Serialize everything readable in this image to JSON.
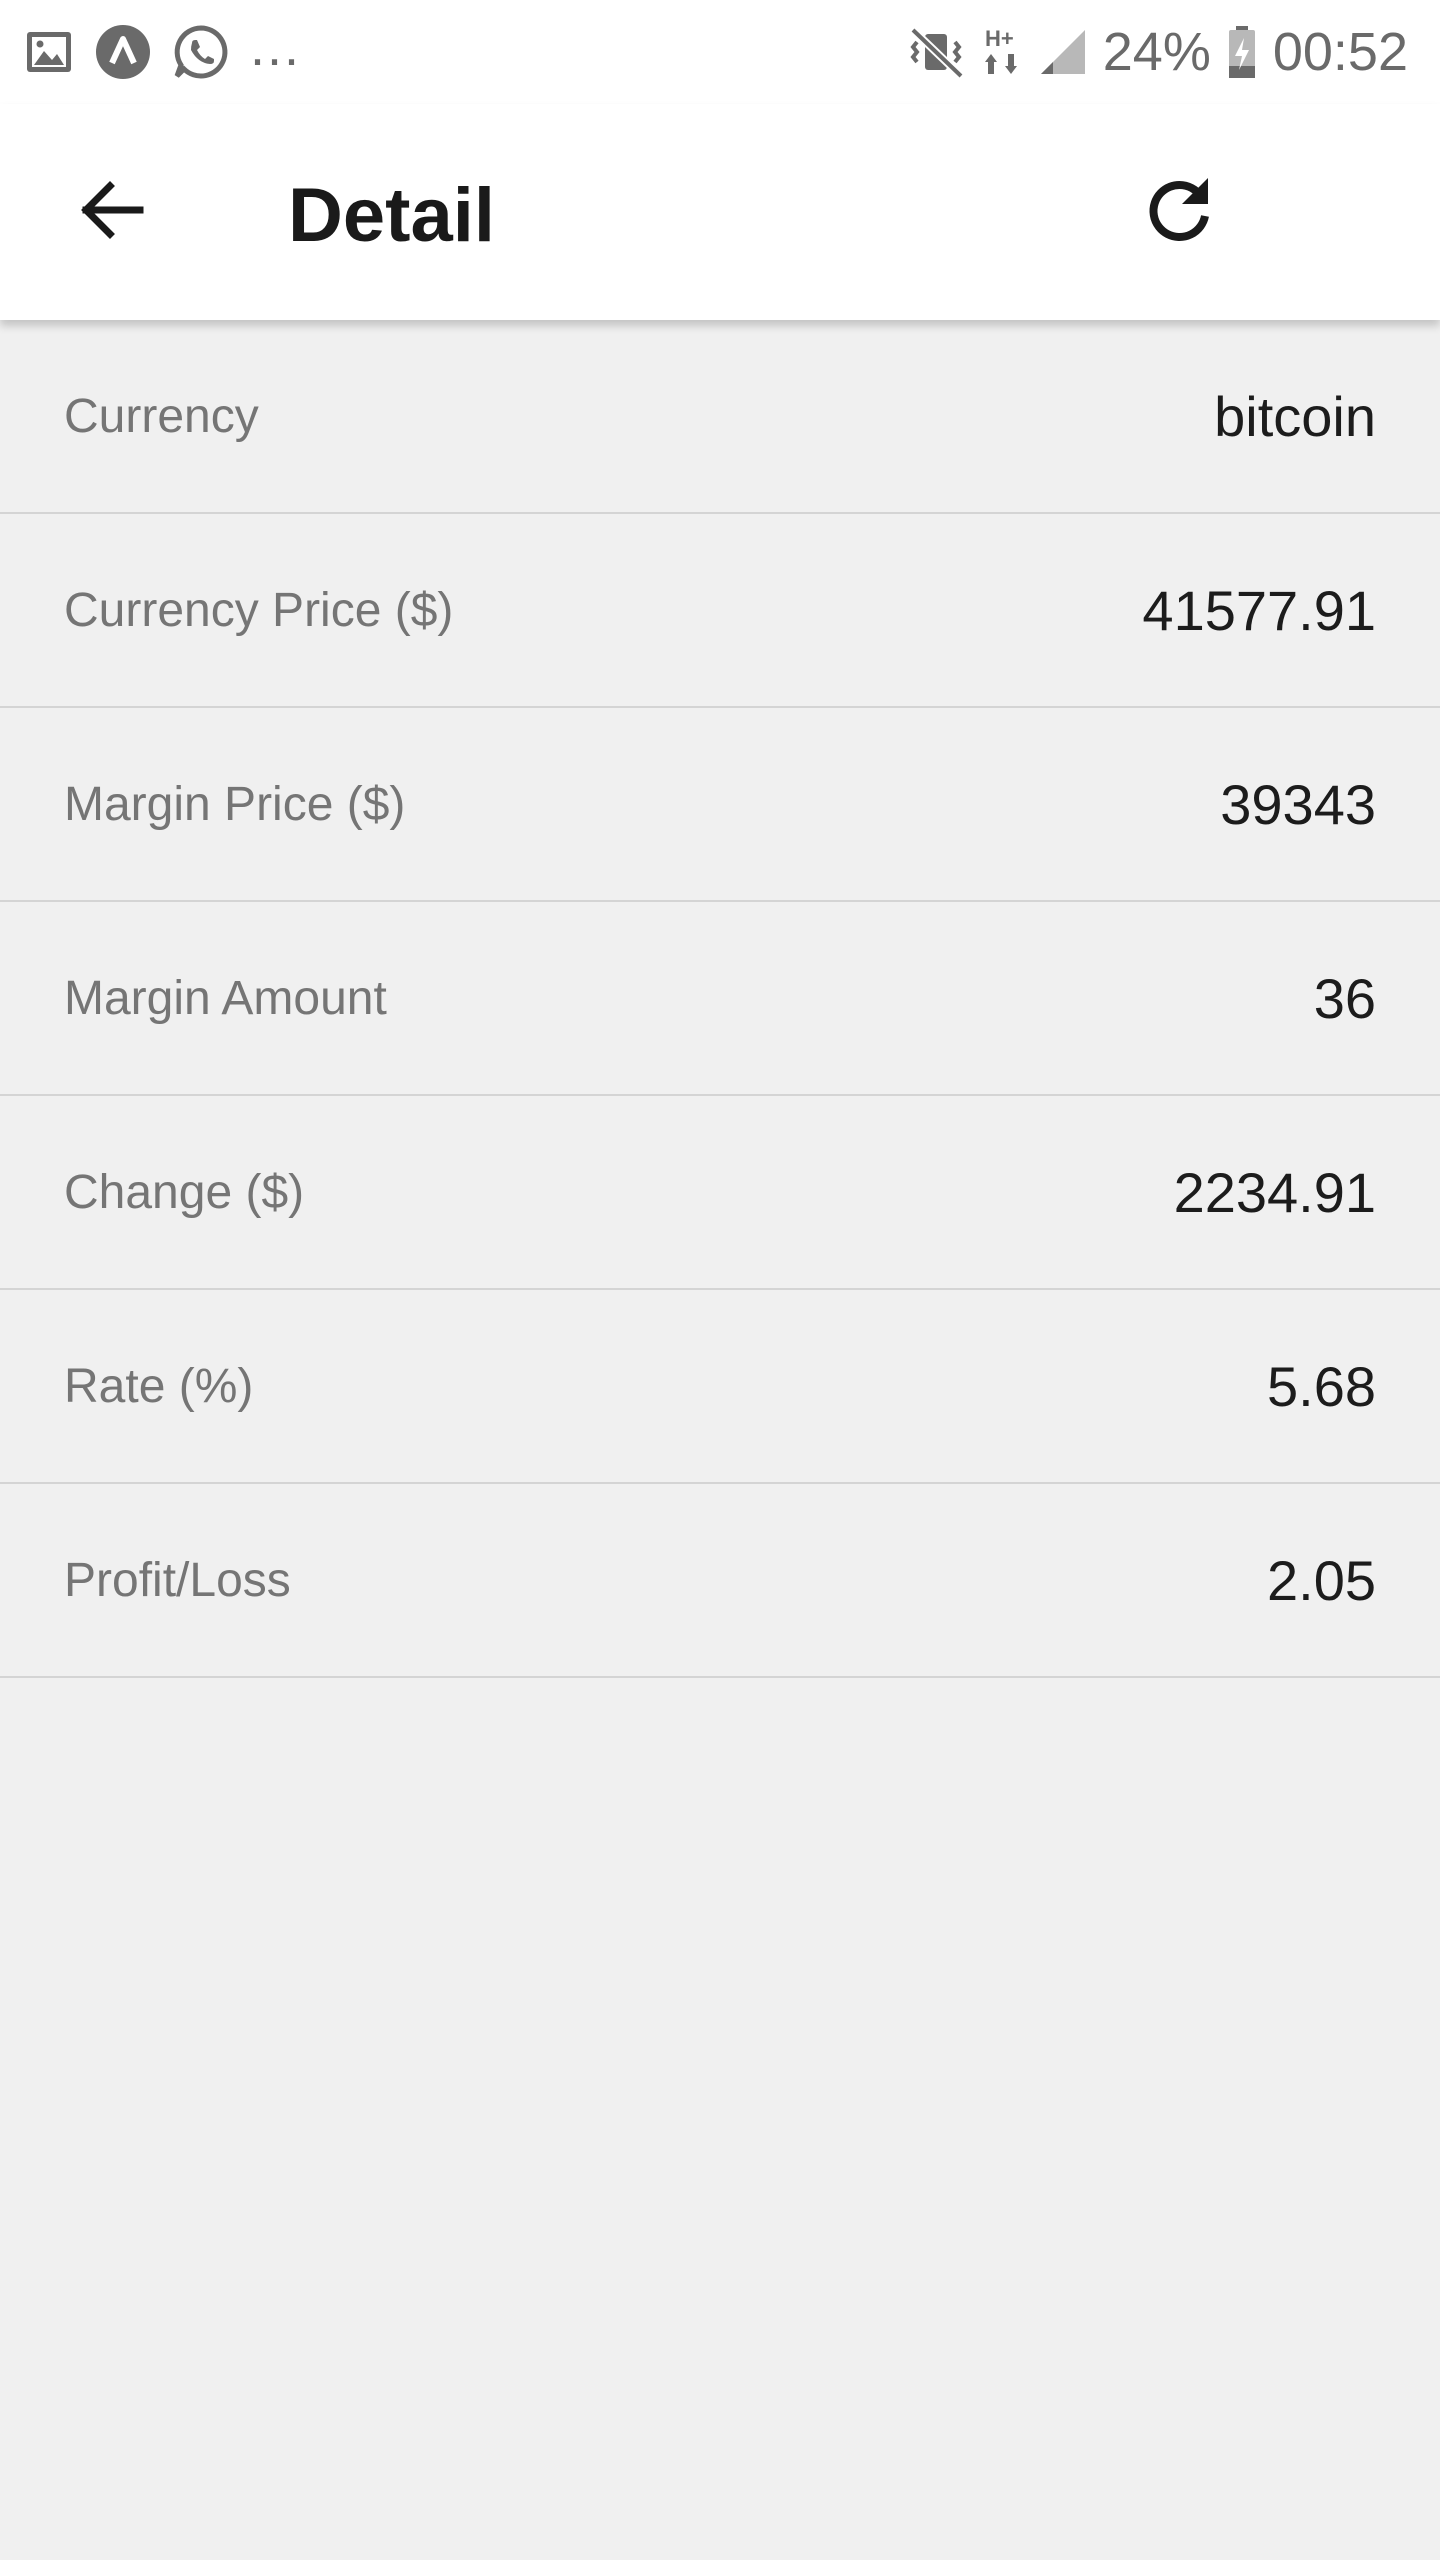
{
  "status_bar": {
    "battery_percent": "24%",
    "time": "00:52",
    "more_indicator": "...",
    "icons": [
      "gallery-icon",
      "app-a-icon",
      "whatsapp-icon",
      "mute-vibrate-icon",
      "hplus-data-icon",
      "signal-icon",
      "battery-icon"
    ]
  },
  "app_bar": {
    "title": "Detail",
    "back_icon": "arrow-left-icon",
    "refresh_icon": "refresh-icon"
  },
  "details": [
    {
      "label": "Currency",
      "value": "bitcoin"
    },
    {
      "label": "Currency Price ($)",
      "value": "41577.91"
    },
    {
      "label": "Margin Price ($)",
      "value": "39343"
    },
    {
      "label": "Margin Amount",
      "value": "36"
    },
    {
      "label": "Change ($)",
      "value": "2234.91"
    },
    {
      "label": "Rate (%)",
      "value": "5.68"
    },
    {
      "label": "Profit/Loss",
      "value": "2.05"
    }
  ],
  "colors": {
    "background": "#f0f0f0",
    "app_bar": "#ffffff",
    "label": "#757575",
    "value": "#1c1c1c",
    "divider": "#d4d4d4"
  }
}
